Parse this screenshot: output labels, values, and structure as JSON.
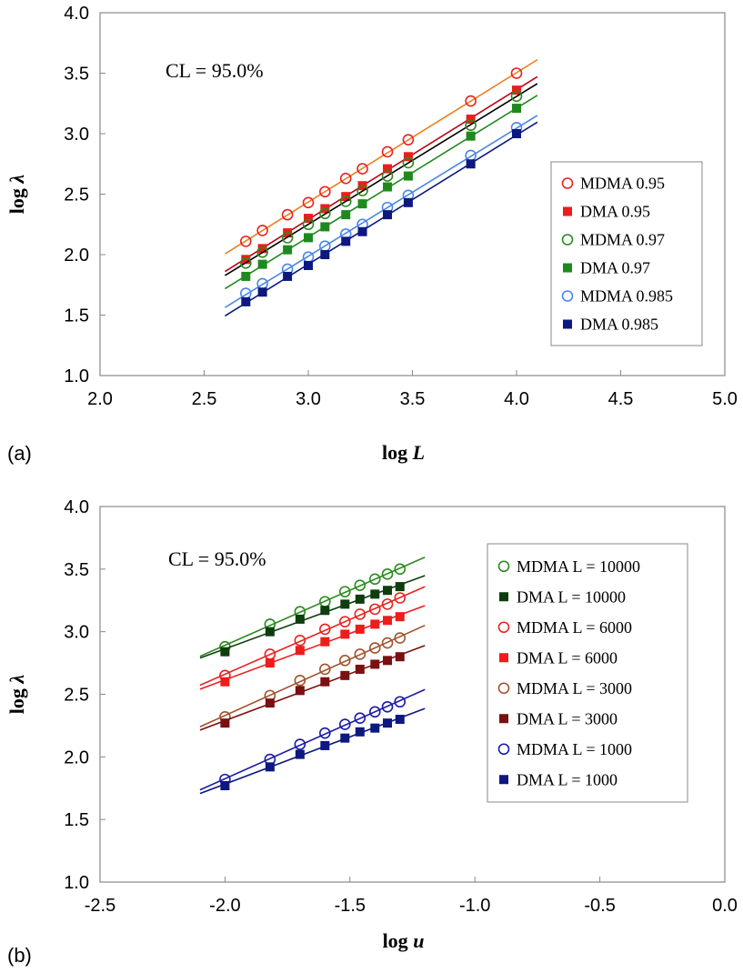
{
  "chart_data": [
    {
      "type": "scatter",
      "panel_label": "(a)",
      "xlabel_text": "log ",
      "xlabel_var": "L",
      "ylabel_text": "log ",
      "ylabel_var": "λ",
      "annotation": "CL = 95.0%",
      "xlim": [
        2.0,
        5.0
      ],
      "ylim": [
        1.0,
        4.0
      ],
      "xticks": [
        "2.0",
        "2.5",
        "3.0",
        "3.5",
        "4.0",
        "4.5",
        "5.0"
      ],
      "yticks": [
        "1.0",
        "1.5",
        "2.0",
        "2.5",
        "3.0",
        "3.5",
        "4.0"
      ],
      "fit_range": [
        2.6,
        4.1
      ],
      "legend_position": "right",
      "series": [
        {
          "name": "MDMA 0.95",
          "marker": "open-circle",
          "color": "#e8231f",
          "line_color": "#f07d1a",
          "x": [
            2.7,
            2.78,
            2.9,
            3.0,
            3.08,
            3.18,
            3.26,
            3.38,
            3.48,
            3.78,
            4.0
          ],
          "y": [
            2.11,
            2.2,
            2.33,
            2.43,
            2.52,
            2.63,
            2.71,
            2.85,
            2.95,
            3.27,
            3.5
          ]
        },
        {
          "name": "DMA 0.95",
          "marker": "filled-square",
          "color": "#ee1c1c",
          "line_color": "#c00010",
          "x": [
            2.7,
            2.78,
            2.9,
            3.0,
            3.08,
            3.18,
            3.26,
            3.38,
            3.48,
            3.78,
            4.0
          ],
          "y": [
            1.96,
            2.05,
            2.18,
            2.3,
            2.38,
            2.48,
            2.57,
            2.71,
            2.81,
            3.12,
            3.36
          ]
        },
        {
          "name": "MDMA 0.97",
          "marker": "open-circle",
          "color": "#2a8a1e",
          "line_color": "#000000",
          "x": [
            2.7,
            2.78,
            2.9,
            3.0,
            3.08,
            3.18,
            3.26,
            3.38,
            3.48,
            3.78,
            4.0
          ],
          "y": [
            1.93,
            2.02,
            2.14,
            2.25,
            2.34,
            2.44,
            2.53,
            2.65,
            2.76,
            3.07,
            3.31
          ]
        },
        {
          "name": "DMA 0.97",
          "marker": "filled-square",
          "color": "#1e8a1e",
          "line_color": "#1e8a1e",
          "x": [
            2.7,
            2.78,
            2.9,
            3.0,
            3.08,
            3.18,
            3.26,
            3.38,
            3.48,
            3.78,
            4.0
          ],
          "y": [
            1.82,
            1.92,
            2.04,
            2.14,
            2.23,
            2.33,
            2.42,
            2.56,
            2.65,
            2.98,
            3.21
          ]
        },
        {
          "name": "MDMA 0.985",
          "marker": "open-circle",
          "color": "#4a86e8",
          "line_color": "#4a86e8",
          "x": [
            2.7,
            2.78,
            2.9,
            3.0,
            3.08,
            3.18,
            3.26,
            3.38,
            3.48,
            3.78,
            4.0
          ],
          "y": [
            1.68,
            1.76,
            1.88,
            1.98,
            2.07,
            2.17,
            2.25,
            2.39,
            2.49,
            2.82,
            3.05
          ]
        },
        {
          "name": "DMA 0.985",
          "marker": "filled-square",
          "color": "#0d1880",
          "line_color": "#0d1880",
          "x": [
            2.7,
            2.78,
            2.9,
            3.0,
            3.08,
            3.18,
            3.26,
            3.38,
            3.48,
            3.78,
            4.0
          ],
          "y": [
            1.61,
            1.69,
            1.82,
            1.91,
            2.0,
            2.11,
            2.19,
            2.33,
            2.43,
            2.75,
            3.0
          ]
        }
      ]
    },
    {
      "type": "scatter",
      "panel_label": "(b)",
      "xlabel_text": "log ",
      "xlabel_var": "u",
      "ylabel_text": "log ",
      "ylabel_var": "λ",
      "annotation": "CL = 95.0%",
      "xlim": [
        -2.5,
        0.0
      ],
      "ylim": [
        1.0,
        4.0
      ],
      "xticks": [
        "-2.5",
        "-2.0",
        "-1.5",
        "-1.0",
        "-0.5",
        "0.0"
      ],
      "yticks": [
        "1.0",
        "1.5",
        "2.0",
        "2.5",
        "3.0",
        "3.5",
        "4.0"
      ],
      "fit_range": [
        -2.1,
        -1.2
      ],
      "legend_position": "top-right",
      "series": [
        {
          "name": "MDMA L = 10000",
          "marker": "open-circle",
          "color": "#2a8a1e",
          "line_color": "#2a8a1e",
          "x": [
            -2.0,
            -1.82,
            -1.7,
            -1.6,
            -1.52,
            -1.46,
            -1.4,
            -1.35,
            -1.3
          ],
          "y": [
            2.88,
            3.06,
            3.16,
            3.24,
            3.32,
            3.37,
            3.42,
            3.46,
            3.5
          ]
        },
        {
          "name": "DMA L = 10000",
          "marker": "filled-square",
          "color": "#0e3d0e",
          "line_color": "#0e3d0e",
          "x": [
            -2.0,
            -1.82,
            -1.7,
            -1.6,
            -1.52,
            -1.46,
            -1.4,
            -1.35,
            -1.3
          ],
          "y": [
            2.84,
            3.0,
            3.1,
            3.17,
            3.22,
            3.26,
            3.3,
            3.33,
            3.36
          ]
        },
        {
          "name": "MDMA L = 6000",
          "marker": "open-circle",
          "color": "#e8231f",
          "line_color": "#e8231f",
          "x": [
            -2.0,
            -1.82,
            -1.7,
            -1.6,
            -1.52,
            -1.46,
            -1.4,
            -1.35,
            -1.3
          ],
          "y": [
            2.65,
            2.82,
            2.93,
            3.02,
            3.08,
            3.14,
            3.18,
            3.22,
            3.27
          ]
        },
        {
          "name": "DMA L = 6000",
          "marker": "filled-square",
          "color": "#ee1c1c",
          "line_color": "#ee1c1c",
          "x": [
            -2.0,
            -1.82,
            -1.7,
            -1.6,
            -1.52,
            -1.46,
            -1.4,
            -1.35,
            -1.3
          ],
          "y": [
            2.6,
            2.75,
            2.85,
            2.92,
            2.98,
            3.02,
            3.06,
            3.09,
            3.12
          ]
        },
        {
          "name": "MDMA L = 3000",
          "marker": "open-circle",
          "color": "#a0522d",
          "line_color": "#a0522d",
          "x": [
            -2.0,
            -1.82,
            -1.7,
            -1.6,
            -1.52,
            -1.46,
            -1.4,
            -1.35,
            -1.3
          ],
          "y": [
            2.32,
            2.49,
            2.61,
            2.7,
            2.77,
            2.82,
            2.87,
            2.91,
            2.95
          ]
        },
        {
          "name": "DMA L = 3000",
          "marker": "filled-square",
          "color": "#7a1010",
          "line_color": "#7a1010",
          "x": [
            -2.0,
            -1.82,
            -1.7,
            -1.6,
            -1.52,
            -1.46,
            -1.4,
            -1.35,
            -1.3
          ],
          "y": [
            2.27,
            2.43,
            2.53,
            2.6,
            2.65,
            2.7,
            2.74,
            2.77,
            2.8
          ]
        },
        {
          "name": "MDMA L = 1000",
          "marker": "open-circle",
          "color": "#1a1aa8",
          "line_color": "#1a1aa8",
          "x": [
            -2.0,
            -1.82,
            -1.7,
            -1.6,
            -1.52,
            -1.46,
            -1.4,
            -1.35,
            -1.3
          ],
          "y": [
            1.82,
            1.98,
            2.1,
            2.19,
            2.26,
            2.31,
            2.36,
            2.4,
            2.44
          ]
        },
        {
          "name": "DMA L = 1000",
          "marker": "filled-square",
          "color": "#0d1880",
          "line_color": "#0d1880",
          "x": [
            -2.0,
            -1.82,
            -1.7,
            -1.6,
            -1.52,
            -1.46,
            -1.4,
            -1.35,
            -1.3
          ],
          "y": [
            1.77,
            1.92,
            2.02,
            2.09,
            2.15,
            2.2,
            2.23,
            2.27,
            2.3
          ]
        }
      ]
    }
  ]
}
